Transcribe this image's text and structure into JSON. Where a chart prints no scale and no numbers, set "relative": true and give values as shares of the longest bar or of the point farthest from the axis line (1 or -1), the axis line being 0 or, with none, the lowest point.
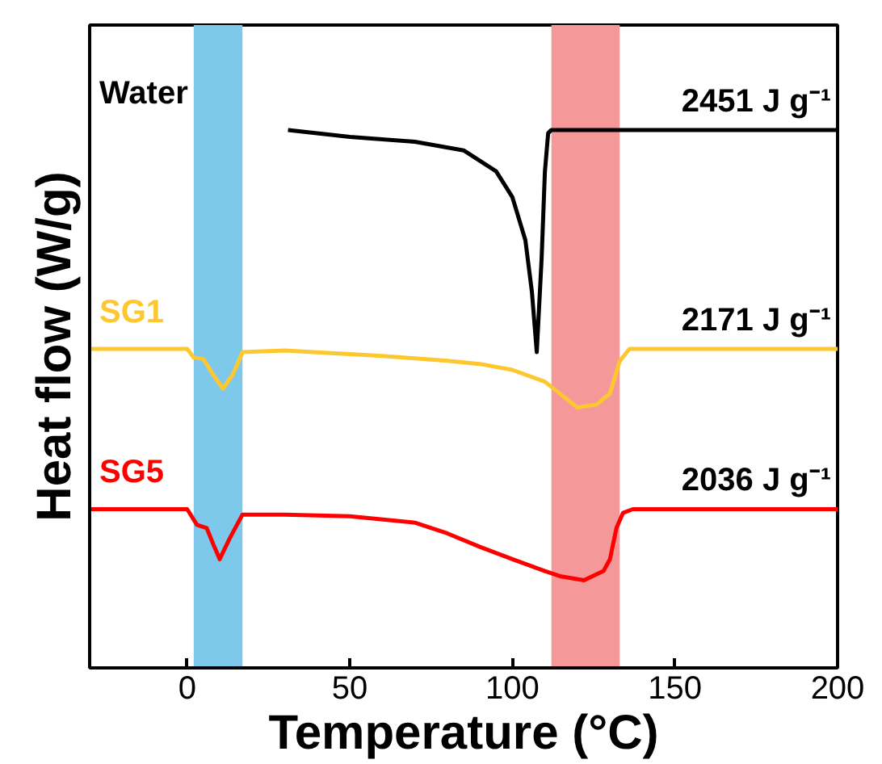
{
  "chart_data": {
    "type": "line",
    "relative": true,
    "xlabel": "Temperature (°C)",
    "ylabel": "Heat flow (W/g)",
    "xlim": [
      -30,
      200
    ],
    "xticks": [
      0,
      50,
      100,
      150,
      200
    ],
    "grid": false,
    "tick_labels": "x",
    "series": [
      {
        "name": "Water",
        "color": "#000000",
        "x": [
          31,
          50,
          70,
          85,
          95,
          100,
          104,
          106,
          107.5,
          109,
          110,
          111,
          112,
          200
        ],
        "values": [
          1.0,
          0.987,
          0.978,
          0.962,
          0.923,
          0.875,
          0.795,
          0.699,
          0.587,
          0.763,
          0.923,
          0.994,
          1.0,
          1.0
        ]
      },
      {
        "name": "SG1",
        "color": "#fdc82f",
        "x": [
          -30,
          0,
          2,
          5,
          8,
          11,
          14,
          17,
          30,
          60,
          80,
          90,
          100,
          110,
          120,
          126,
          130,
          133,
          136,
          200
        ],
        "values": [
          0.593,
          0.593,
          0.577,
          0.574,
          0.545,
          0.519,
          0.545,
          0.587,
          0.59,
          0.58,
          0.571,
          0.565,
          0.554,
          0.532,
          0.484,
          0.49,
          0.51,
          0.57,
          0.593,
          0.593
        ]
      },
      {
        "name": "SG5",
        "color": "#ff0000",
        "x": [
          -30,
          0,
          3,
          6,
          8,
          10,
          13,
          17,
          30,
          50,
          70,
          80,
          90,
          100,
          110,
          115,
          122,
          128,
          130,
          132,
          134,
          137,
          200
        ],
        "values": [
          0.295,
          0.295,
          0.266,
          0.26,
          0.23,
          0.202,
          0.24,
          0.285,
          0.285,
          0.282,
          0.27,
          0.25,
          0.225,
          0.202,
          0.18,
          0.17,
          0.163,
          0.18,
          0.202,
          0.26,
          0.288,
          0.295,
          0.295
        ]
      }
    ],
    "bands": [
      {
        "axis": "x",
        "from": 2,
        "to": 17,
        "color": "#7ec8ec"
      },
      {
        "axis": "x",
        "from": 112,
        "to": 133,
        "color": "#f4989a"
      }
    ],
    "annotations": [
      "2451 J g⁻¹",
      "2171 J g⁻¹",
      "2036 J g⁻¹"
    ]
  }
}
